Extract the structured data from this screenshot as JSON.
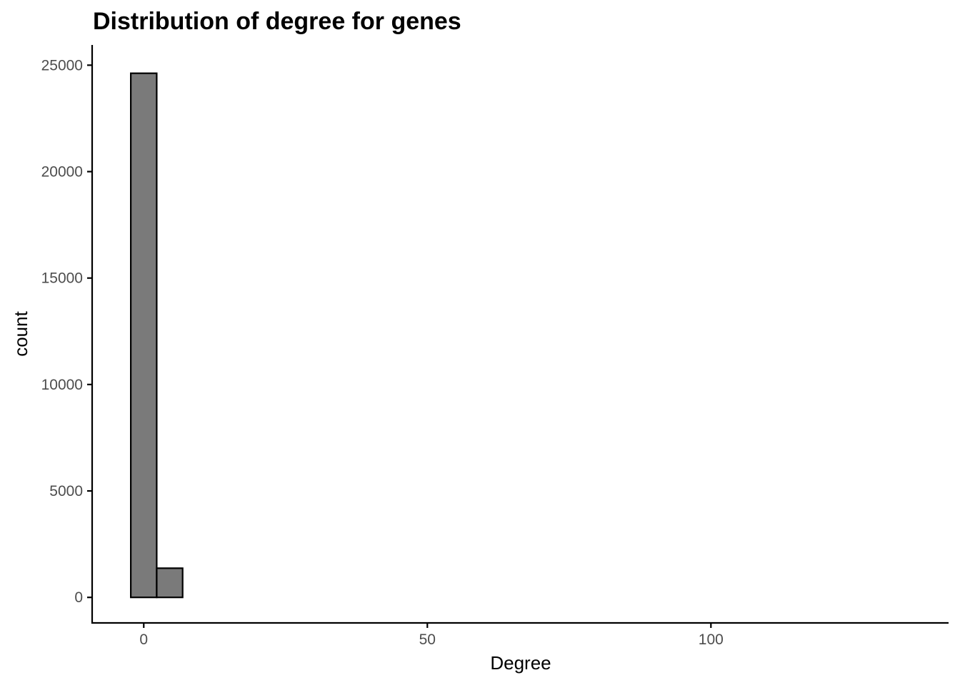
{
  "chart_data": {
    "type": "bar",
    "title": "Distribution of degree for genes",
    "xlabel": "Degree",
    "ylabel": "count",
    "xlim": [
      -9.1,
      141.9
    ],
    "ylim": [
      -1200,
      25950
    ],
    "xticks": [
      0,
      50,
      100
    ],
    "yticks": [
      0,
      5000,
      10000,
      15000,
      20000,
      25000
    ],
    "bin_width": 4.57,
    "bins": [
      {
        "x": 0.0,
        "count": 24620
      },
      {
        "x": 4.57,
        "count": 1370
      },
      {
        "x": 9.14,
        "count": 0
      },
      {
        "x": 13.71,
        "count": 0
      },
      {
        "x": 18.28,
        "count": 0
      },
      {
        "x": 22.85,
        "count": 0
      },
      {
        "x": 27.42,
        "count": 0
      },
      {
        "x": 31.99,
        "count": 0
      },
      {
        "x": 36.56,
        "count": 0
      },
      {
        "x": 41.13,
        "count": 0
      },
      {
        "x": 45.7,
        "count": 0
      },
      {
        "x": 50.27,
        "count": 0
      },
      {
        "x": 54.84,
        "count": 0
      },
      {
        "x": 59.41,
        "count": 0
      },
      {
        "x": 63.98,
        "count": 0
      },
      {
        "x": 68.55,
        "count": 0
      },
      {
        "x": 73.12,
        "count": 0
      },
      {
        "x": 77.69,
        "count": 0
      },
      {
        "x": 82.26,
        "count": 0
      },
      {
        "x": 86.83,
        "count": 0
      },
      {
        "x": 91.4,
        "count": 0
      },
      {
        "x": 95.97,
        "count": 0
      },
      {
        "x": 100.54,
        "count": 0
      },
      {
        "x": 105.11,
        "count": 0
      },
      {
        "x": 109.68,
        "count": 0
      },
      {
        "x": 114.25,
        "count": 0
      },
      {
        "x": 118.82,
        "count": 0
      },
      {
        "x": 123.39,
        "count": 0
      },
      {
        "x": 127.96,
        "count": 0
      },
      {
        "x": 132.53,
        "count": 0
      }
    ],
    "bar_fill": "#7a7a7a",
    "bar_stroke": "#000000",
    "grid": false,
    "legend": "none"
  }
}
